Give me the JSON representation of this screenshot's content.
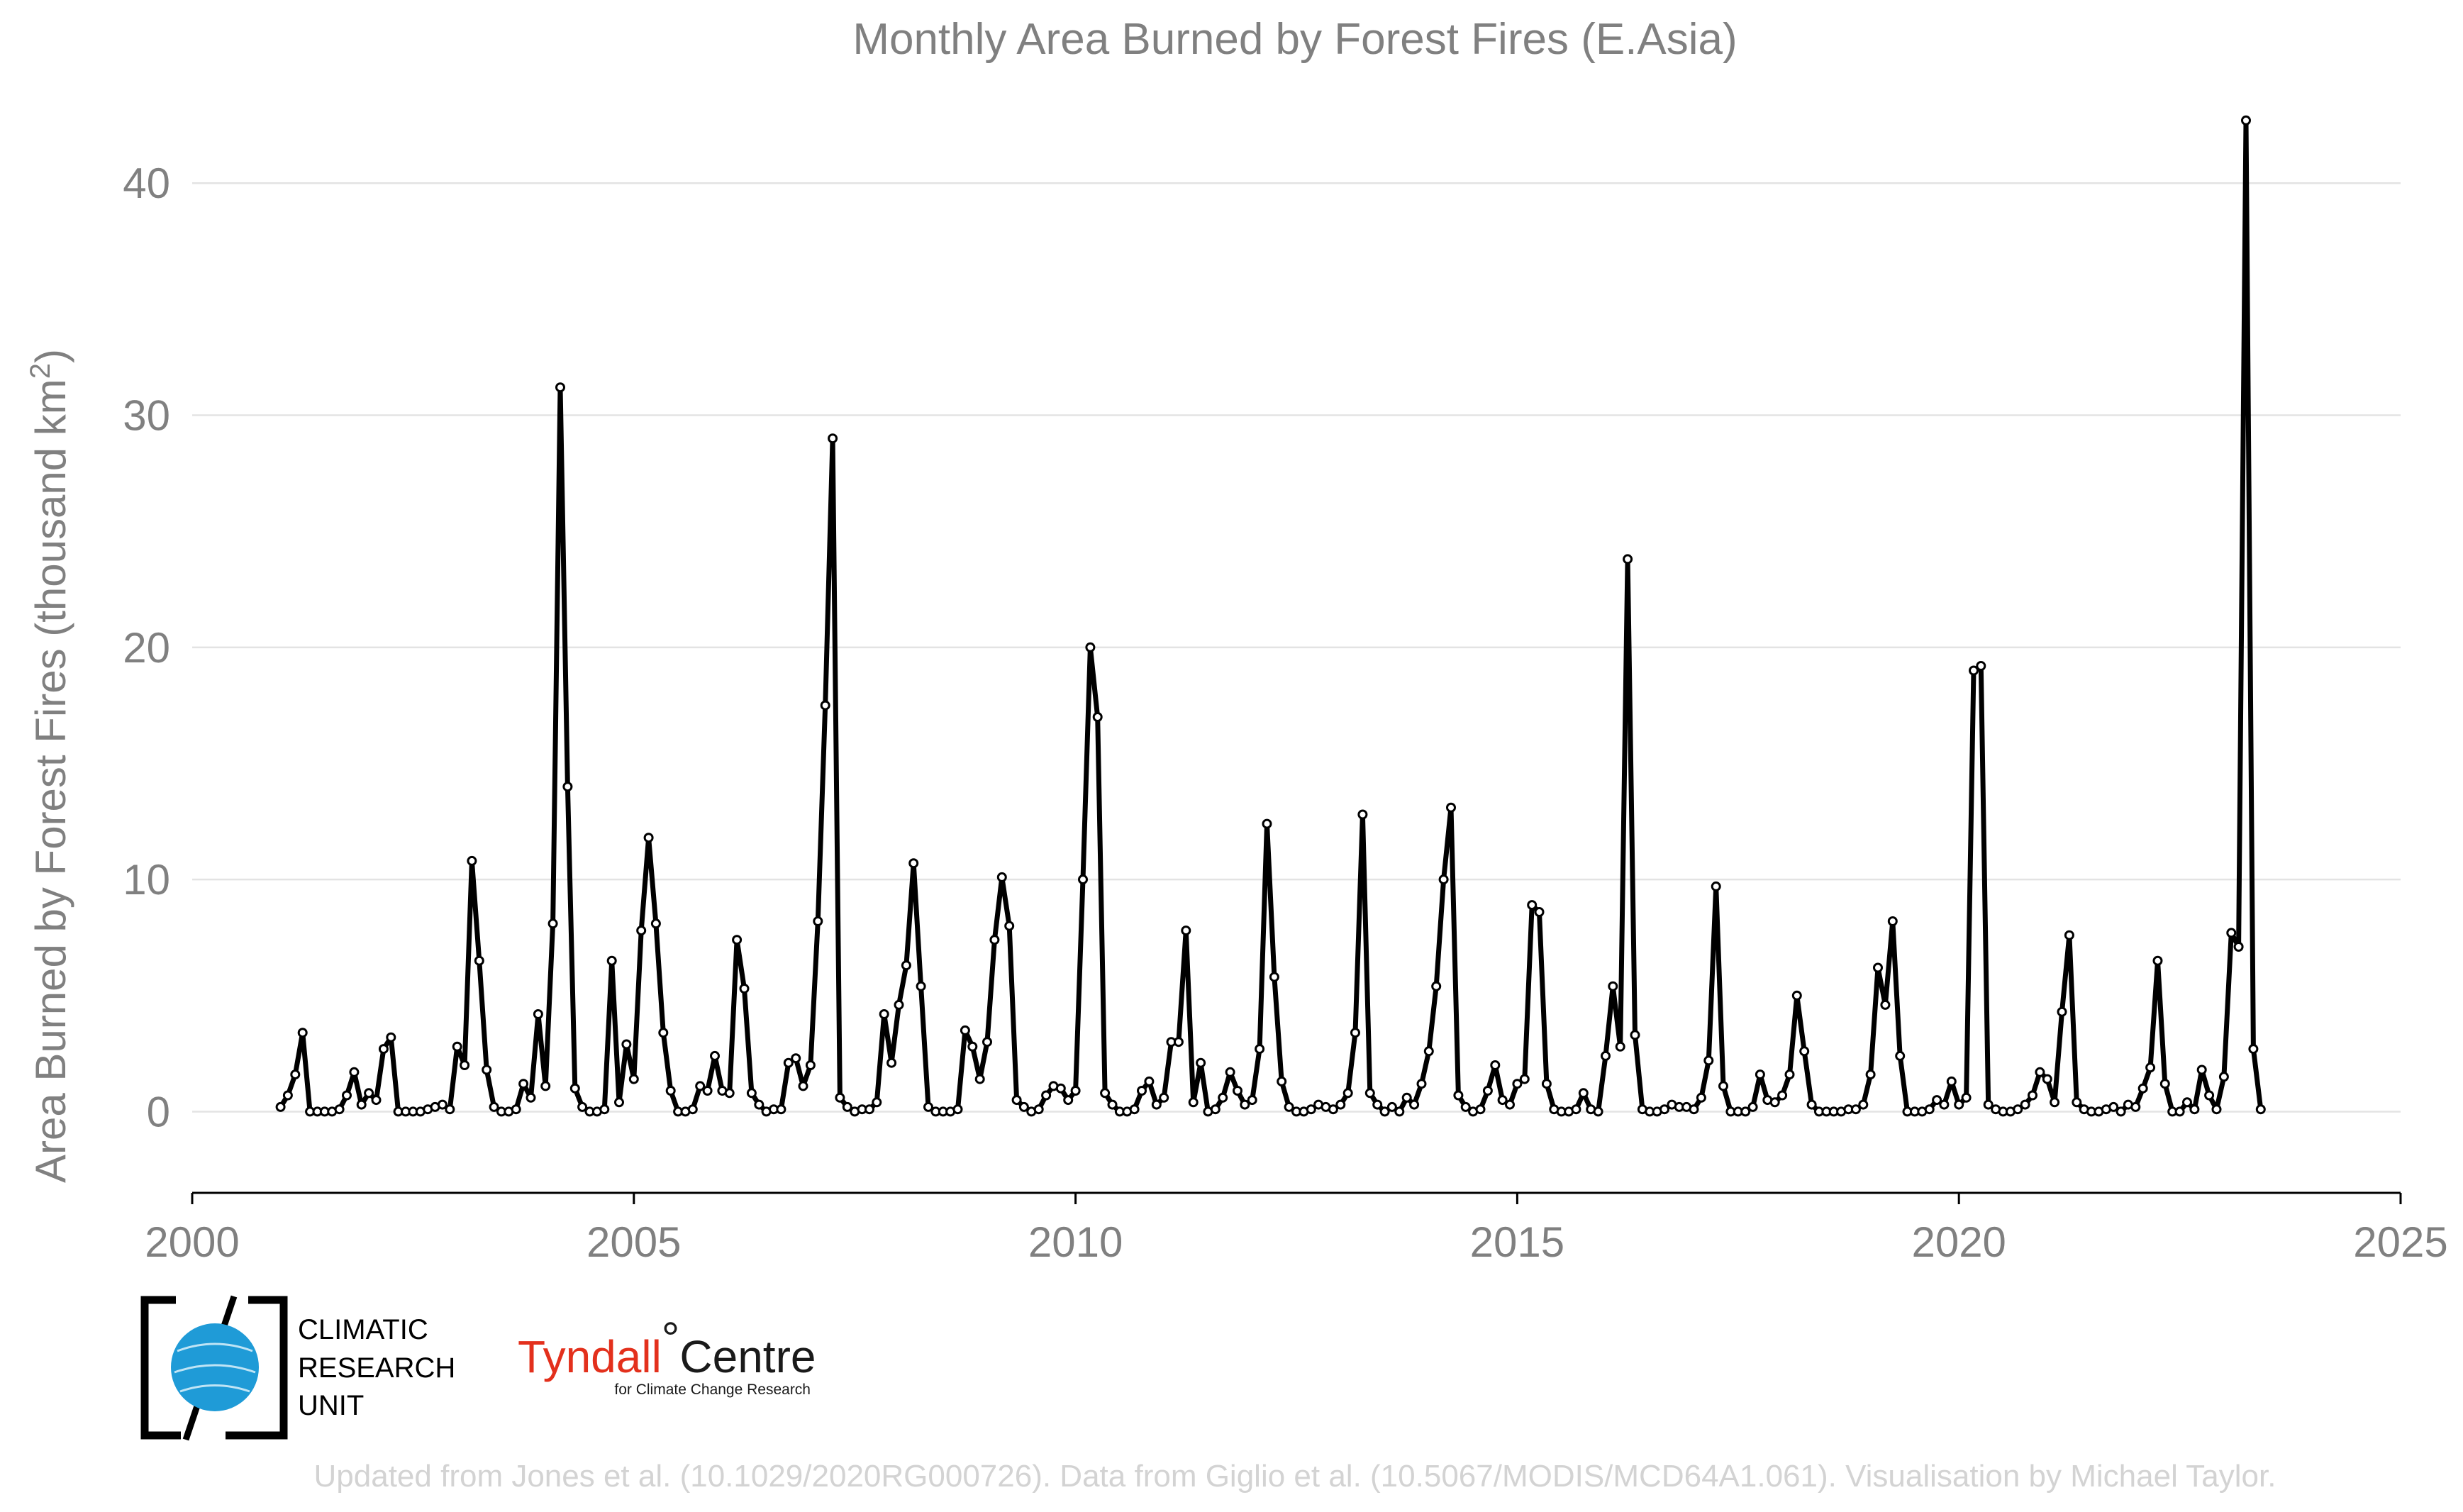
{
  "chart_data": {
    "type": "line",
    "title": "Monthly Area Burned by Forest Fires (E.Asia)",
    "ylabel": "Area Burned by Forest Fires (thousand km",
    "ylabel_sup": "2",
    "ylabel_end": ")",
    "xlim": [
      2000,
      2025
    ],
    "ylim": [
      -3.5,
      43
    ],
    "xticks": [
      "2000",
      "2005",
      "2010",
      "2015",
      "2020",
      "2025"
    ],
    "yticks": [
      "0",
      "10",
      "20",
      "30",
      "40"
    ],
    "grid": "horizontal",
    "series": [
      {
        "start": "2001-01",
        "frequency": "monthly",
        "values": [
          0.2,
          0.7,
          1.6,
          3.4,
          0.0,
          0.0,
          0.0,
          0.0,
          0.1,
          0.7,
          1.7,
          0.3,
          0.8,
          0.5,
          2.7,
          3.2,
          0.0,
          0.0,
          0.0,
          0.0,
          0.1,
          0.2,
          0.3,
          0.1,
          2.8,
          2.0,
          10.8,
          6.5,
          1.8,
          0.2,
          0.0,
          0.0,
          0.1,
          1.2,
          0.6,
          4.2,
          1.1,
          8.1,
          31.2,
          14.0,
          1.0,
          0.2,
          0.0,
          0.0,
          0.1,
          6.5,
          0.4,
          2.9,
          1.4,
          7.8,
          11.8,
          8.1,
          3.4,
          0.9,
          0.0,
          0.0,
          0.1,
          1.1,
          0.9,
          2.4,
          0.9,
          0.8,
          7.4,
          5.3,
          0.8,
          0.3,
          0.0,
          0.1,
          0.1,
          2.1,
          2.3,
          1.1,
          2.0,
          8.2,
          17.5,
          29.0,
          0.6,
          0.2,
          0.0,
          0.1,
          0.1,
          0.4,
          4.2,
          2.1,
          4.6,
          6.3,
          10.7,
          5.4,
          0.2,
          0.0,
          0.0,
          0.0,
          0.1,
          3.5,
          2.8,
          1.4,
          3.0,
          7.4,
          10.1,
          8.0,
          0.5,
          0.2,
          0.0,
          0.1,
          0.7,
          1.1,
          1.0,
          0.5,
          0.9,
          10.0,
          20.0,
          17.0,
          0.8,
          0.3,
          0.0,
          0.0,
          0.1,
          0.9,
          1.3,
          0.3,
          0.6,
          3.0,
          3.0,
          7.8,
          0.4,
          2.1,
          0.0,
          0.1,
          0.6,
          1.7,
          0.9,
          0.3,
          0.5,
          2.7,
          12.4,
          5.8,
          1.3,
          0.2,
          0.0,
          0.0,
          0.1,
          0.3,
          0.2,
          0.1,
          0.3,
          0.8,
          3.4,
          12.8,
          0.8,
          0.3,
          0.0,
          0.2,
          0.0,
          0.6,
          0.3,
          1.2,
          2.6,
          5.4,
          10.0,
          13.1,
          0.7,
          0.2,
          0.0,
          0.1,
          0.9,
          2.0,
          0.5,
          0.3,
          1.2,
          1.4,
          8.9,
          8.6,
          1.2,
          0.1,
          0.0,
          0.0,
          0.1,
          0.8,
          0.1,
          0.0,
          2.4,
          5.4,
          2.8,
          23.8,
          3.3,
          0.1,
          0.0,
          0.0,
          0.1,
          0.3,
          0.2,
          0.2,
          0.1,
          0.6,
          2.2,
          9.7,
          1.1,
          0.0,
          0.0,
          0.0,
          0.2,
          1.6,
          0.5,
          0.4,
          0.7,
          1.6,
          5.0,
          2.6,
          0.3,
          0.0,
          0.0,
          0.0,
          0.0,
          0.1,
          0.1,
          0.3,
          1.6,
          6.2,
          4.6,
          8.2,
          2.4,
          0.0,
          0.0,
          0.0,
          0.1,
          0.5,
          0.3,
          1.3,
          0.3,
          0.6,
          19.0,
          19.2,
          0.3,
          0.1,
          0.0,
          0.0,
          0.1,
          0.3,
          0.7,
          1.7,
          1.4,
          0.4,
          4.3,
          7.6,
          0.4,
          0.1,
          0.0,
          0.0,
          0.1,
          0.2,
          0.0,
          0.3,
          0.2,
          1.0,
          1.9,
          6.5,
          1.2,
          0.0,
          0.0,
          0.4,
          0.1,
          1.8,
          0.7,
          0.1,
          1.5,
          7.7,
          7.1,
          42.7,
          2.7,
          0.1
        ]
      }
    ]
  },
  "logos": {
    "cru": {
      "line1": "CLIMATIC",
      "line2": "RESEARCH",
      "line3": "UNIT"
    },
    "tyndall": {
      "name_red": "Tyndall",
      "degree": "°",
      "name_black": "Centre",
      "tagline": "for Climate Change Research"
    }
  },
  "credit": "Updated from Jones et al. (10.1029/2020RG000726). Data from Giglio et al. (10.5067/MODIS/MCD64A1.061). Visualisation by Michael Taylor.",
  "colors": {
    "line": "#000000",
    "grid": "#e3e3e3",
    "text": "#808080",
    "credit": "#d3d3d3",
    "cru_blue": "#1f9bd7",
    "tyndall_red": "#e3301c"
  }
}
